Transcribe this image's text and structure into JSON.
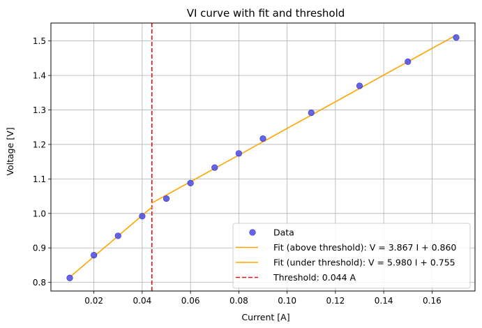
{
  "chart_data": {
    "type": "scatter",
    "title": "VI curve with fit and threshold",
    "xlabel": "Current [A]",
    "ylabel": "Voltage [V]",
    "xlim": [
      0.0022,
      0.1778
    ],
    "ylim": [
      0.775,
      1.552
    ],
    "xticks": [
      0.02,
      0.04,
      0.06,
      0.08,
      0.1,
      0.12,
      0.14,
      0.16
    ],
    "xtick_labels": [
      "0.02",
      "0.04",
      "0.06",
      "0.08",
      "0.10",
      "0.12",
      "0.14",
      "0.16"
    ],
    "yticks": [
      0.8,
      0.9,
      1.0,
      1.1,
      1.2,
      1.3,
      1.4,
      1.5
    ],
    "ytick_labels": [
      "0.8",
      "0.9",
      "1.0",
      "1.1",
      "1.2",
      "1.3",
      "1.4",
      "1.5"
    ],
    "grid": true,
    "legend_position": "lower-right",
    "colors": {
      "data": "#5050e8",
      "data_edge": "#3030c0",
      "fit": "#ffa500",
      "threshold": "#e01010",
      "grid": "#b0b0b0"
    },
    "series": [
      {
        "name": "Data",
        "kind": "scatter",
        "x": [
          0.01,
          0.02,
          0.03,
          0.04,
          0.05,
          0.06,
          0.07,
          0.08,
          0.09,
          0.11,
          0.13,
          0.15,
          0.17
        ],
        "y": [
          0.813,
          0.879,
          0.935,
          0.992,
          1.043,
          1.088,
          1.133,
          1.174,
          1.217,
          1.292,
          1.37,
          1.44,
          1.51
        ]
      },
      {
        "name": "Fit (above threshold): V = 3.867 I + 0.860",
        "kind": "line",
        "x": [
          0.044,
          0.17
        ],
        "y": [
          1.03,
          1.517
        ]
      },
      {
        "name": "Fit (under threshold): V = 5.980 I + 0.755",
        "kind": "line",
        "x": [
          0.01,
          0.044
        ],
        "y": [
          0.815,
          1.018
        ]
      },
      {
        "name": "Threshold: 0.044 A",
        "kind": "vline",
        "x": 0.044
      }
    ]
  }
}
